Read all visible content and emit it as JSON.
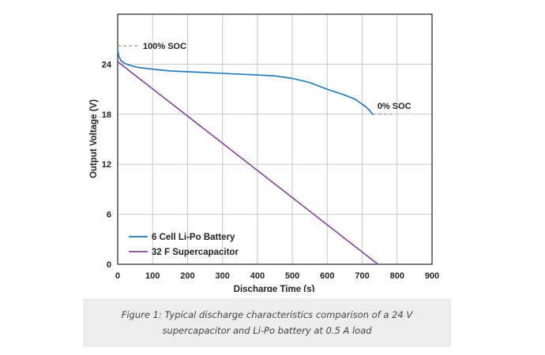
{
  "chart_data": {
    "type": "line",
    "xlabel": "Discharge Time (s)",
    "ylabel": "Output Voltage (V)",
    "xlim": [
      0,
      900
    ],
    "ylim": [
      0,
      30
    ],
    "x_ticks": [
      "0",
      "100",
      "200",
      "300",
      "400",
      "500",
      "600",
      "700",
      "800",
      "900"
    ],
    "y_ticks": [
      "0",
      "6",
      "12",
      "18",
      "24"
    ],
    "grid": true,
    "legend_position": "bottom-left",
    "series": [
      {
        "name": "6 Cell Li-Po Battery",
        "color": "#1b75bb",
        "x": [
          0,
          3,
          6,
          10,
          20,
          40,
          60,
          100,
          150,
          200,
          300,
          400,
          450,
          500,
          550,
          600,
          650,
          680,
          700,
          710,
          720,
          730
        ],
        "y": [
          25.7,
          25.0,
          24.7,
          24.4,
          24.1,
          23.8,
          23.6,
          23.4,
          23.2,
          23.1,
          22.9,
          22.7,
          22.6,
          22.3,
          21.8,
          21.0,
          20.3,
          19.8,
          19.2,
          18.9,
          18.5,
          18.0
        ]
      },
      {
        "name": "32 F Supercapacitor",
        "color": "#84439a",
        "x": [
          0,
          745
        ],
        "y": [
          24.3,
          0
        ]
      }
    ],
    "annotations": [
      {
        "text": "100% SOC",
        "x": 0,
        "y": 26.2
      },
      {
        "text": "0% SOC",
        "x": 730,
        "y": 18.0
      }
    ]
  },
  "caption": {
    "line1": "Figure 1: Typical discharge characteristics comparison of a 24 V",
    "line2": "supercapacitor and Li-Po battery at 0.5 A load"
  }
}
